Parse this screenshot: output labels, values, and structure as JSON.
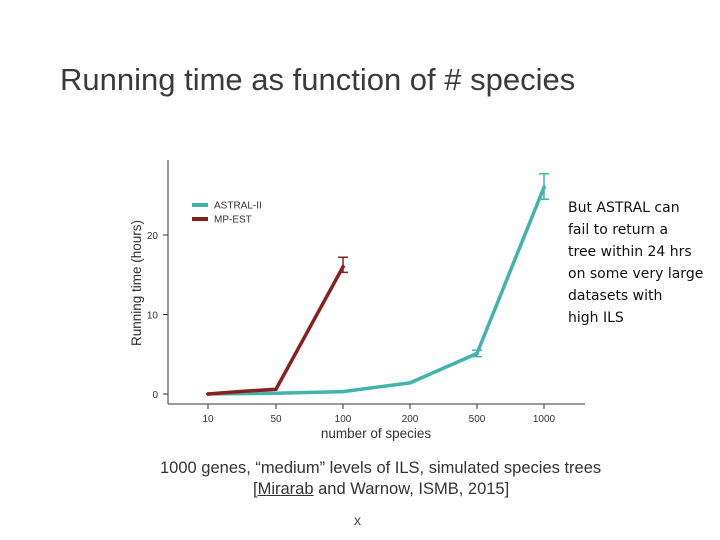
{
  "slide": {
    "title": "Running time as function of # species",
    "callout_lines": [
      "But ASTRAL can",
      "fail to return a",
      "tree within 24 hrs",
      "on some very large",
      "datasets with",
      "high ILS"
    ],
    "caption_line1": "1000 genes, “medium” levels of ILS, simulated species trees",
    "caption_cite_bracket": "[",
    "caption_cite_link": "Mirarab",
    "caption_cite_rest": " and Warnow, ISMB, 2015]",
    "footer_mark": "x"
  },
  "chart_data": {
    "type": "line",
    "title": "",
    "xlabel": "number of species",
    "ylabel": "Running time (hours)",
    "categories": [
      "10",
      "50",
      "100",
      "200",
      "500",
      "1000"
    ],
    "yticks": [
      0,
      10,
      20
    ],
    "ylim": [
      -1,
      29
    ],
    "grid": false,
    "legend_position": "top-left",
    "series": [
      {
        "name": "ASTRAL-II",
        "color": "#3fb4ad",
        "points": [
          {
            "x": 0,
            "y": 0.0
          },
          {
            "x": 1,
            "y": 0.1
          },
          {
            "x": 2,
            "y": 0.3
          },
          {
            "x": 3,
            "y": 1.4
          },
          {
            "x": 4,
            "y": 5.1
          },
          {
            "x": 5,
            "y": 26.0
          }
        ],
        "errors": [
          {
            "x": 4,
            "low": 4.7,
            "high": 5.5
          },
          {
            "x": 5,
            "low": 24.5,
            "high": 27.7
          }
        ]
      },
      {
        "name": "MP-EST",
        "color": "#8b1e1e",
        "points": [
          {
            "x": 0,
            "y": 0.0
          },
          {
            "x": 0.45,
            "y": 0.3
          },
          {
            "x": 1,
            "y": 0.6
          },
          {
            "x": 2,
            "y": 16.0
          }
        ],
        "errors": [
          {
            "x": 2,
            "low": 15.3,
            "high": 17.2
          }
        ]
      }
    ]
  }
}
